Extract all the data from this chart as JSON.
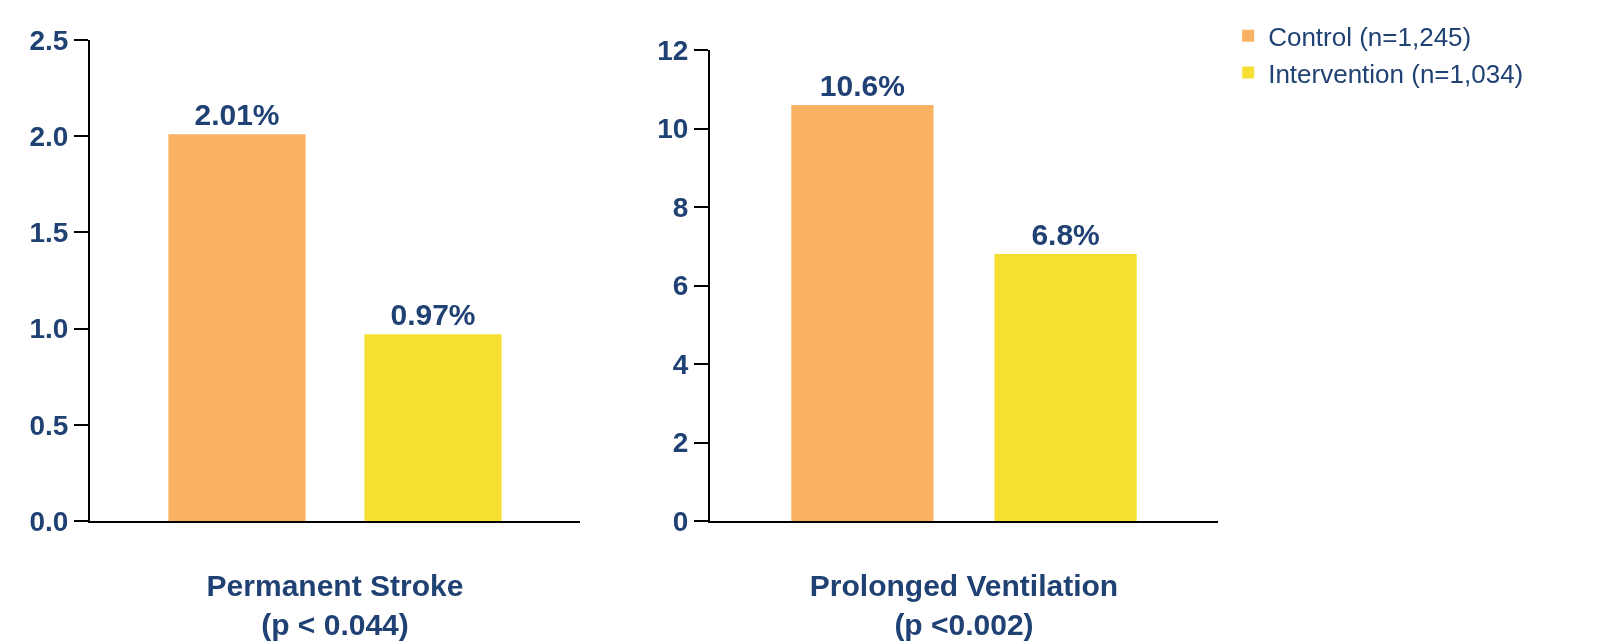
{
  "chart_data": [
    {
      "type": "bar",
      "xlabel": "Permanent Stroke\n(p < 0.044)",
      "categories": [
        null
      ],
      "series": [
        {
          "color": "#f9b264",
          "values": [
            2.01
          ],
          "value_labels": [
            "2.01%"
          ]
        },
        {
          "color": "#f5e032",
          "values": [
            0.97
          ],
          "value_labels": [
            "0.97%"
          ]
        }
      ],
      "ylim": [
        0,
        2.5
      ],
      "yticks": [
        {
          "value": 0,
          "label": "0.0"
        },
        {
          "value": 0.5,
          "label": "0.5"
        },
        {
          "value": 1,
          "label": "1.0"
        },
        {
          "value": 1.5,
          "label": "1.5"
        },
        {
          "value": 2,
          "label": "2.0"
        },
        {
          "value": 2.5,
          "label": "2.5"
        }
      ],
      "grid": false,
      "legend": false
    },
    {
      "type": "bar",
      "xlabel": "Prolonged Ventilation\n(p <0.002)",
      "categories": [
        null
      ],
      "series": [
        {
          "name": "Control (n=1,245)",
          "color": "#f9b264",
          "values": [
            10.6
          ],
          "value_labels": [
            "10.6%"
          ]
        },
        {
          "name": "Intervention (n=1,034)",
          "color": "#f5e032",
          "values": [
            6.8
          ],
          "value_labels": [
            "6.8%"
          ]
        }
      ],
      "ylim": [
        0,
        12
      ],
      "yticks": [
        0,
        2,
        4,
        6,
        8,
        10,
        12
      ],
      "grid": false,
      "legend": "top right"
    }
  ]
}
